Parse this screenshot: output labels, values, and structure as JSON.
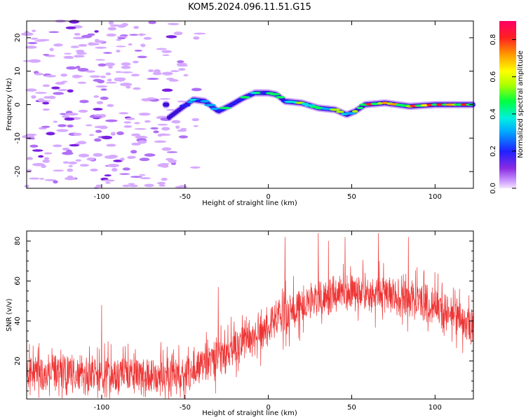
{
  "figure": {
    "title": "KOM5.2024.096.11.51.G15"
  },
  "colors": {
    "snr_line": "#ee3333",
    "axis": "#000000",
    "background": "#ffffff"
  },
  "chart_data": [
    {
      "type": "heatmap",
      "xlabel": "Height of straight line (km)",
      "ylabel": "Frequency (Hz)",
      "xlim": [
        -145,
        123
      ],
      "ylim": [
        -25,
        25
      ],
      "xticks": [
        -100,
        -50,
        0,
        50,
        100
      ],
      "xtick_labels": [
        "-100",
        "-50",
        "0",
        "50",
        "100"
      ],
      "yticks": [
        -20,
        -10,
        0,
        10,
        20
      ],
      "ytick_labels": [
        "-20",
        "-10",
        "0",
        "10",
        "20"
      ],
      "grid": false,
      "colorbar": {
        "label": "Normalized spectral amplitude",
        "range": [
          0.0,
          0.9
        ],
        "ticks": [
          0.0,
          0.2,
          0.4,
          0.6,
          0.8
        ],
        "tick_labels": [
          "0.0",
          "0.2",
          "0.4",
          "0.6",
          "0.8"
        ],
        "colormap": "rainbow (violet to red)"
      },
      "noise_region_x_range": [
        -145,
        -60
      ],
      "trace_points": [
        {
          "x": -60,
          "y": -4
        },
        {
          "x": -52,
          "y": -1
        },
        {
          "x": -45,
          "y": 1.5
        },
        {
          "x": -38,
          "y": 1
        },
        {
          "x": -30,
          "y": -2
        },
        {
          "x": -22,
          "y": 0
        },
        {
          "x": -15,
          "y": 2
        },
        {
          "x": -8,
          "y": 3.5
        },
        {
          "x": 0,
          "y": 3.5
        },
        {
          "x": 5,
          "y": 3
        },
        {
          "x": 10,
          "y": 1
        },
        {
          "x": 20,
          "y": 0.5
        },
        {
          "x": 30,
          "y": -1
        },
        {
          "x": 40,
          "y": -1.5
        },
        {
          "x": 47,
          "y": -3
        },
        {
          "x": 52,
          "y": -2
        },
        {
          "x": 58,
          "y": 0
        },
        {
          "x": 70,
          "y": 0.5
        },
        {
          "x": 85,
          "y": -0.5
        },
        {
          "x": 100,
          "y": 0
        },
        {
          "x": 123,
          "y": 0
        }
      ]
    },
    {
      "type": "line",
      "xlabel": "Height of straight line (km)",
      "ylabel": "SNR (v/v)",
      "xlim": [
        -145,
        123
      ],
      "ylim": [
        1,
        85
      ],
      "xticks": [
        -100,
        -50,
        0,
        50,
        100
      ],
      "xtick_labels": [
        "-100",
        "-50",
        "0",
        "50",
        "100"
      ],
      "yticks": [
        20,
        40,
        60,
        80
      ],
      "ytick_labels": [
        "20",
        "40",
        "60",
        "80"
      ],
      "grid": false,
      "series": [
        {
          "trend": {
            "x": [
              -145,
              -120,
              -100,
              -80,
              -60,
              -50,
              -40,
              -30,
              -20,
              -10,
              0,
              10,
              20,
              30,
              40,
              50,
              60,
              70,
              80,
              90,
              100,
              110,
              123
            ],
            "y": [
              14,
              14,
              13,
              13,
              13,
              14,
              17,
              22,
              27,
              32,
              37,
              43,
              48,
              52,
              54,
              55,
              54,
              53,
              52,
              50,
              47,
              43,
              37
            ]
          },
          "spread": 8,
          "peaks": [
            {
              "x": -100,
              "y": 48
            },
            {
              "x": -30,
              "y": 57
            },
            {
              "x": 10,
              "y": 82
            },
            {
              "x": 30,
              "y": 84
            },
            {
              "x": 36,
              "y": 80
            },
            {
              "x": 46,
              "y": 82
            },
            {
              "x": 66,
              "y": 84
            },
            {
              "x": 84,
              "y": 82
            }
          ]
        }
      ]
    }
  ]
}
